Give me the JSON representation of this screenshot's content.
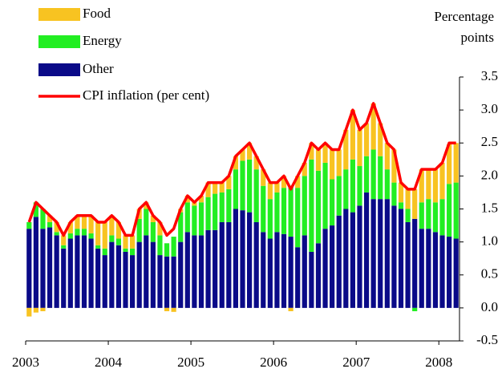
{
  "chart_data": {
    "type": "bar",
    "stacked": true,
    "y_label": "Percentage points",
    "categories": [
      "2003",
      null,
      null,
      null,
      null,
      null,
      null,
      null,
      null,
      null,
      null,
      null,
      "2004",
      null,
      null,
      null,
      null,
      null,
      null,
      null,
      null,
      null,
      null,
      null,
      "2005",
      null,
      null,
      null,
      null,
      null,
      null,
      null,
      null,
      null,
      null,
      null,
      "2006",
      null,
      null,
      null,
      null,
      null,
      null,
      null,
      null,
      null,
      null,
      null,
      "2007",
      null,
      null,
      null,
      null,
      null,
      null,
      null,
      null,
      null,
      null,
      null,
      "2008",
      null,
      null
    ],
    "series": [
      {
        "name": "Food",
        "type": "bar",
        "color": "#f8c321",
        "values": [
          -0.13,
          -0.07,
          -0.05,
          0.1,
          0.15,
          0.15,
          0.17,
          0.2,
          0.2,
          0.27,
          0.35,
          0.4,
          0.3,
          0.25,
          0.2,
          0.2,
          0.15,
          0.1,
          0.1,
          0.2,
          -0.05,
          -0.06,
          0.05,
          0.1,
          0.05,
          0.1,
          0.22,
          0.17,
          0.15,
          0.2,
          0.2,
          0.17,
          0.25,
          0.2,
          0.25,
          0.25,
          0.15,
          0.18,
          -0.05,
          0.18,
          0.2,
          0.25,
          0.32,
          0.3,
          0.45,
          0.4,
          0.6,
          0.75,
          0.55,
          0.5,
          0.7,
          0.5,
          0.4,
          0.5,
          0.3,
          0.3,
          0.45,
          0.5,
          0.45,
          0.5,
          0.55,
          0.6,
          0.6
        ]
      },
      {
        "name": "Energy",
        "type": "bar",
        "color": "#22ee22",
        "values": [
          0.1,
          0.22,
          0.3,
          0.08,
          0.05,
          0.05,
          0.08,
          0.1,
          0.1,
          0.08,
          0.05,
          0.1,
          0.1,
          0.1,
          0.05,
          0.1,
          0.35,
          0.4,
          0.3,
          0.3,
          0.2,
          0.3,
          0.45,
          0.45,
          0.45,
          0.5,
          0.5,
          0.55,
          0.45,
          0.5,
          0.6,
          0.75,
          0.8,
          0.8,
          0.7,
          0.6,
          0.6,
          0.7,
          0.77,
          0.9,
          0.9,
          1.4,
          1.1,
          1.0,
          0.7,
          0.6,
          0.6,
          0.8,
          0.6,
          0.55,
          0.75,
          0.65,
          0.45,
          0.35,
          0.1,
          0.2,
          -0.05,
          0.4,
          0.45,
          0.45,
          0.55,
          0.8,
          0.85
        ]
      },
      {
        "name": "Other",
        "type": "bar",
        "color": "#0a0a88",
        "values": [
          1.2,
          1.38,
          1.2,
          1.22,
          1.1,
          0.9,
          1.05,
          1.1,
          1.1,
          1.05,
          0.9,
          0.8,
          1.0,
          0.95,
          0.85,
          0.8,
          1.0,
          1.1,
          1.0,
          0.8,
          0.78,
          0.78,
          1.0,
          1.15,
          1.1,
          1.1,
          1.18,
          1.18,
          1.3,
          1.3,
          1.5,
          1.48,
          1.45,
          1.3,
          1.15,
          1.05,
          1.15,
          1.12,
          1.08,
          0.92,
          1.1,
          0.85,
          0.98,
          1.2,
          1.25,
          1.4,
          1.5,
          1.45,
          1.55,
          1.75,
          1.65,
          1.65,
          1.65,
          1.55,
          1.5,
          1.3,
          1.35,
          1.2,
          1.2,
          1.15,
          1.1,
          1.08,
          1.05
        ]
      },
      {
        "name": "CPI inflation (per cent)",
        "type": "line",
        "color": "#ff0000",
        "values": [
          1.3,
          1.6,
          1.5,
          1.4,
          1.3,
          1.1,
          1.3,
          1.4,
          1.4,
          1.4,
          1.3,
          1.3,
          1.4,
          1.3,
          1.1,
          1.1,
          1.5,
          1.6,
          1.4,
          1.3,
          1.1,
          1.2,
          1.5,
          1.7,
          1.6,
          1.7,
          1.9,
          1.9,
          1.9,
          2.0,
          2.3,
          2.4,
          2.5,
          2.3,
          2.1,
          1.9,
          1.9,
          2.0,
          1.8,
          2.0,
          2.2,
          2.5,
          2.4,
          2.5,
          2.4,
          2.4,
          2.7,
          3.0,
          2.7,
          2.8,
          3.1,
          2.8,
          2.5,
          2.4,
          1.9,
          1.8,
          1.8,
          2.1,
          2.1,
          2.1,
          2.2,
          2.5,
          2.5
        ]
      }
    ],
    "stack_order": [
      "Other",
      "Energy",
      "Food"
    ],
    "ylim": [
      -0.5,
      3.5
    ],
    "yticks": [
      -0.5,
      {
        "value": 0,
        "label": "0.0"
      },
      0.5,
      {
        "value": 1,
        "label": "1.0"
      },
      1.5,
      {
        "value": 2,
        "label": "2.0"
      },
      2.5,
      {
        "value": 3,
        "label": "3.0"
      },
      3.5
    ],
    "y_axis_side": "right",
    "grid": false
  }
}
